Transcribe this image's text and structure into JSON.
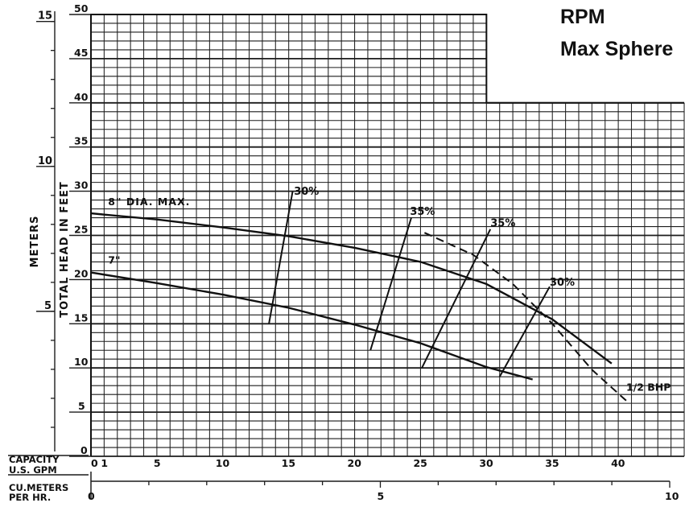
{
  "header": {
    "line1": "RPM",
    "line2": "Max Sphere"
  },
  "chart_data": {
    "type": "line",
    "grid": true,
    "x_axes": {
      "gpm_label": "CAPACITY U.S. GPM",
      "gpm_label_lines": [
        "CAPACITY",
        "U.S. GPM"
      ],
      "gpm_ticks": [
        "0",
        "1",
        "5",
        "10",
        "15",
        "20",
        "25",
        "30",
        "35",
        "40"
      ],
      "gpm_range": [
        0,
        45
      ],
      "m3h_label": "CU.METERS PER HR.",
      "m3h_label_lines": [
        "CU.METERS",
        "PER HR."
      ],
      "m3h_ticks": [
        "0",
        "5",
        "10"
      ],
      "m3h_range": [
        0,
        10
      ]
    },
    "y_axes": {
      "feet_label": "TOTAL HEAD IN FEET",
      "feet_ticks": [
        "0",
        "5",
        "10",
        "15",
        "20",
        "25",
        "30",
        "35",
        "40",
        "45",
        "50"
      ],
      "feet_range": [
        0,
        50
      ],
      "meters_label": "METERS",
      "meters_ticks": [
        "5",
        "10",
        "15"
      ]
    },
    "series": [
      {
        "name": "8\" DIA. MAX.",
        "x": [
          0,
          5,
          10,
          15,
          20,
          25,
          30,
          35,
          39.5
        ],
        "y": [
          27.5,
          26.8,
          25.9,
          24.9,
          23.6,
          22,
          19.5,
          15.5,
          10.5
        ]
      },
      {
        "name": "7\"",
        "x": [
          0,
          5,
          10,
          15,
          20,
          25,
          30,
          33.5
        ],
        "y": [
          20.8,
          19.6,
          18.3,
          16.8,
          14.9,
          12.8,
          10.1,
          8.7
        ]
      }
    ],
    "efficiency_lines": [
      {
        "label": "30%",
        "x": [
          13.5,
          15.3
        ],
        "y": [
          15,
          30
        ]
      },
      {
        "label": "35%",
        "x": [
          21.2,
          24.3
        ],
        "y": [
          12,
          27
        ]
      },
      {
        "label": "35%",
        "x": [
          25.1,
          30.3
        ],
        "y": [
          10,
          25.7
        ]
      },
      {
        "label": "30%",
        "x": [
          31,
          34.8
        ],
        "y": [
          9,
          19.2
        ]
      }
    ],
    "bhp_line": {
      "label": "1/2 BHP",
      "x": [
        25.3,
        29,
        32,
        35,
        38,
        40.6
      ],
      "y": [
        25.3,
        22.8,
        19.5,
        15,
        9.8,
        6.3
      ]
    }
  }
}
